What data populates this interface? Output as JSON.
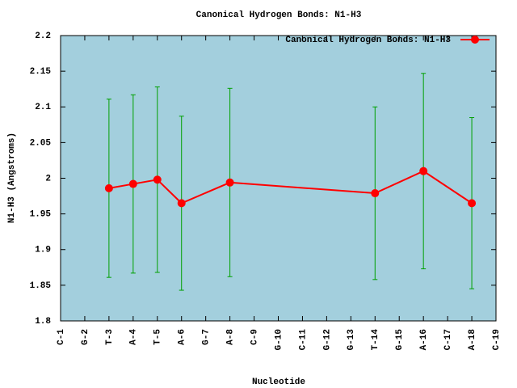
{
  "chart_data": {
    "type": "line",
    "title": "Canonical Hydrogen Bonds: N1-H3",
    "x_label": "Nucleotide",
    "y_label": "N1-H3 (Angstroms)",
    "x": [
      3,
      4,
      5,
      6,
      8,
      14,
      16,
      18
    ],
    "series": [
      {
        "name": "Canonical Hydrogen Bonds: N1-H3",
        "color": "#ff0000",
        "error_color": "#00a000",
        "values": [
          1.986,
          1.992,
          1.998,
          1.965,
          1.994,
          1.979,
          2.01,
          1.965
        ],
        "errors": [
          0.125,
          0.125,
          0.13,
          0.122,
          0.132,
          0.121,
          0.137,
          0.12
        ]
      }
    ],
    "xlim": [
      1,
      19
    ],
    "xticks": [
      {
        "value": 1,
        "label": "C-1"
      },
      {
        "value": 2,
        "label": "G-2"
      },
      {
        "value": 3,
        "label": "T-3"
      },
      {
        "value": 4,
        "label": "A-4"
      },
      {
        "value": 5,
        "label": "T-5"
      },
      {
        "value": 6,
        "label": "A-6"
      },
      {
        "value": 7,
        "label": "G-7"
      },
      {
        "value": 8,
        "label": "A-8"
      },
      {
        "value": 9,
        "label": "C-9"
      },
      {
        "value": 10,
        "label": "G-10"
      },
      {
        "value": 11,
        "label": "C-11"
      },
      {
        "value": 12,
        "label": "G-12"
      },
      {
        "value": 13,
        "label": "G-13"
      },
      {
        "value": 14,
        "label": "T-14"
      },
      {
        "value": 15,
        "label": "G-15"
      },
      {
        "value": 16,
        "label": "A-16"
      },
      {
        "value": 17,
        "label": "C-17"
      },
      {
        "value": 18,
        "label": "A-18"
      },
      {
        "value": 19,
        "label": "C-19"
      }
    ],
    "ylim": [
      1.8,
      2.2
    ],
    "yticks": [
      1.8,
      1.85,
      1.9,
      1.95,
      2,
      2.05,
      2.1,
      2.15,
      2.2
    ],
    "background": "#a3cfdd",
    "legend": "top-right"
  }
}
